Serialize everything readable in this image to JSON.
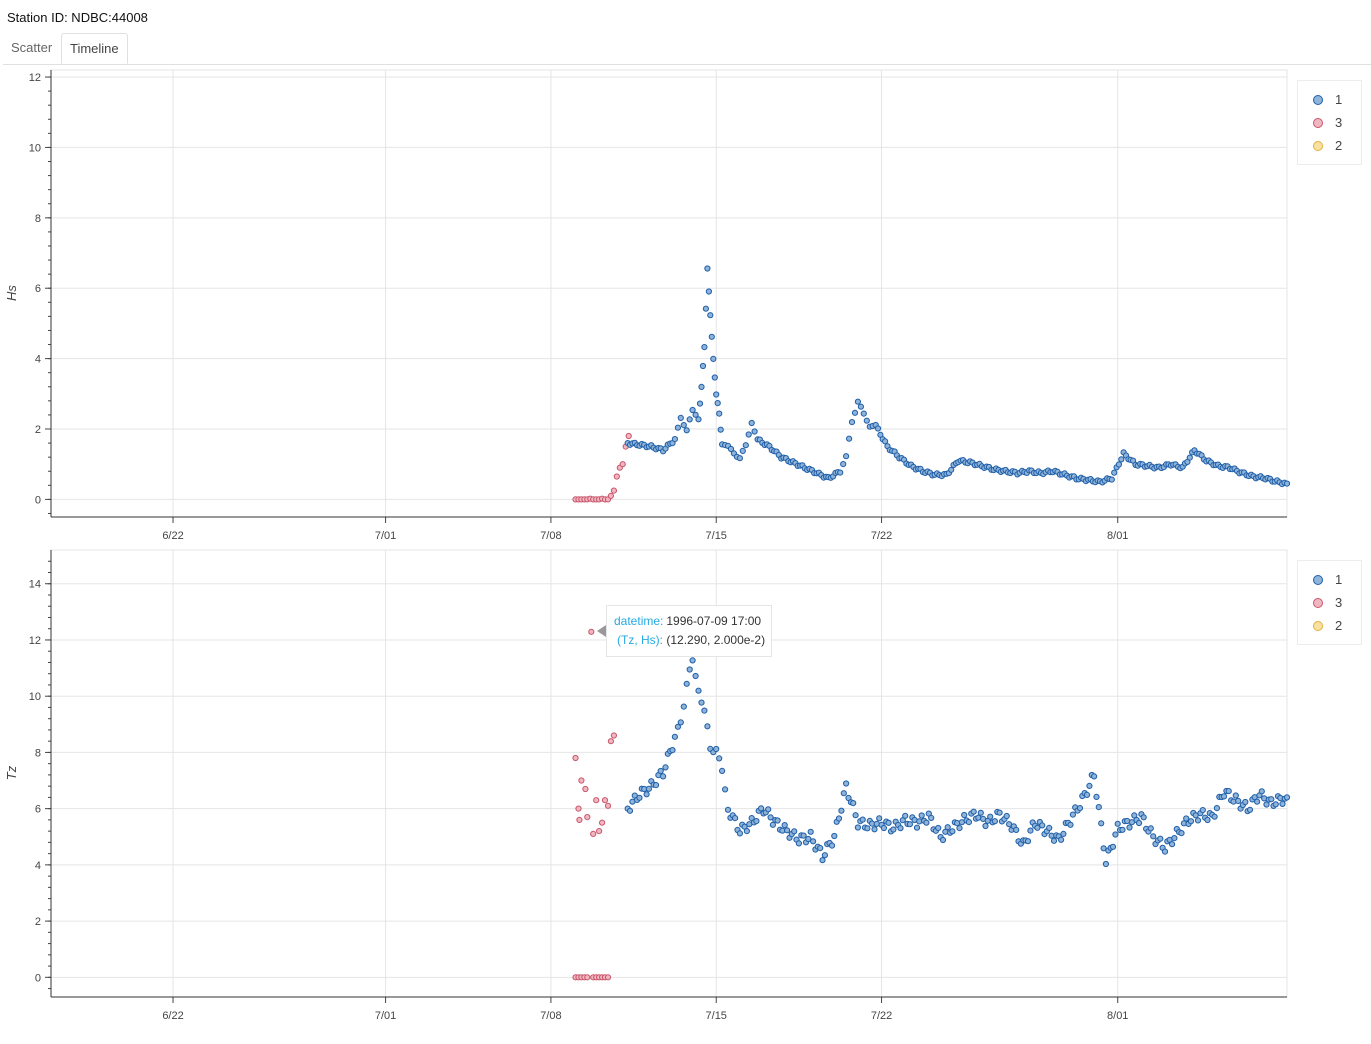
{
  "header": {
    "station": "Station ID: NDBC:44008"
  },
  "tabs": [
    {
      "label": "Scatter",
      "active": false
    },
    {
      "label": "Timeline",
      "active": true
    }
  ],
  "legend": [
    {
      "label": "1",
      "color": "#1f5fa8"
    },
    {
      "label": "3",
      "color": "#d36a7e"
    },
    {
      "label": "2",
      "color": "#f2c94c"
    }
  ],
  "tooltip": {
    "k1": "datetime:",
    "v1": "1996-07-09 17:00",
    "k2": "(Tz, Hs):",
    "v2": "(12.290, 2.000e-2)"
  },
  "chart_data": [
    {
      "type": "scatter",
      "ylabel": "Hs",
      "xlabel": "",
      "ylim": [
        -0.5,
        12.2
      ],
      "yticks": [
        0,
        2,
        4,
        6,
        8,
        10,
        12
      ],
      "xlim": [
        "1996-06-16 20:00",
        "1996-08-08 04:00"
      ],
      "xticks": [
        {
          "label": "6/22",
          "date": "1996-06-22"
        },
        {
          "label": "7/01",
          "date": "1996-07-01"
        },
        {
          "label": "7/08",
          "date": "1996-07-08"
        },
        {
          "label": "7/15",
          "date": "1996-07-15"
        },
        {
          "label": "7/22",
          "date": "1996-07-22"
        },
        {
          "label": "8/01",
          "date": "1996-08-01"
        }
      ],
      "grid": true,
      "series": [
        {
          "name": "3",
          "points": [
            [
              "1996-07-09 01:00",
              0.0
            ],
            [
              "1996-07-09 04:00",
              0.0
            ],
            [
              "1996-07-09 07:00",
              0.0
            ],
            [
              "1996-07-09 10:00",
              0.0
            ],
            [
              "1996-07-09 13:00",
              0.0
            ],
            [
              "1996-07-09 16:00",
              0.02
            ],
            [
              "1996-07-09 19:00",
              0.0
            ],
            [
              "1996-07-09 22:00",
              0.0
            ],
            [
              "1996-07-10 01:00",
              0.0
            ],
            [
              "1996-07-10 04:00",
              0.02
            ],
            [
              "1996-07-10 07:00",
              0.0
            ],
            [
              "1996-07-10 10:00",
              0.0
            ],
            [
              "1996-07-10 13:00",
              0.1
            ],
            [
              "1996-07-10 16:00",
              0.25
            ],
            [
              "1996-07-10 19:00",
              0.65
            ],
            [
              "1996-07-10 22:00",
              0.9
            ],
            [
              "1996-07-11 01:00",
              1.0
            ],
            [
              "1996-07-11 04:00",
              1.5
            ],
            [
              "1996-07-11 07:00",
              1.8
            ]
          ]
        },
        {
          "name": "1",
          "points": [
            [
              "1996-07-11 06:00",
              1.6
            ],
            [
              "1996-07-11 18:00",
              1.55
            ],
            [
              "1996-07-12 06:00",
              1.5
            ],
            [
              "1996-07-12 18:00",
              1.4
            ],
            [
              "1996-07-13 06:00",
              1.7
            ],
            [
              "1996-07-13 12:00",
              2.3
            ],
            [
              "1996-07-13 18:00",
              2.0
            ],
            [
              "1996-07-14 00:00",
              2.5
            ],
            [
              "1996-07-14 06:00",
              2.3
            ],
            [
              "1996-07-14 09:00",
              3.2
            ],
            [
              "1996-07-14 12:00",
              4.3
            ],
            [
              "1996-07-14 15:00",
              6.6
            ],
            [
              "1996-07-14 18:00",
              5.2
            ],
            [
              "1996-07-14 21:00",
              4.0
            ],
            [
              "1996-07-15 00:00",
              3.0
            ],
            [
              "1996-07-15 03:00",
              2.4
            ],
            [
              "1996-07-15 06:00",
              1.6
            ],
            [
              "1996-07-15 12:00",
              1.5
            ],
            [
              "1996-07-15 18:00",
              1.3
            ],
            [
              "1996-07-16 00:00",
              1.2
            ],
            [
              "1996-07-16 06:00",
              1.5
            ],
            [
              "1996-07-16 12:00",
              2.2
            ],
            [
              "1996-07-16 18:00",
              1.7
            ],
            [
              "1996-07-17 06:00",
              1.5
            ],
            [
              "1996-07-17 18:00",
              1.2
            ],
            [
              "1996-07-18 06:00",
              1.05
            ],
            [
              "1996-07-18 18:00",
              0.9
            ],
            [
              "1996-07-19 06:00",
              0.75
            ],
            [
              "1996-07-19 18:00",
              0.6
            ],
            [
              "1996-07-20 06:00",
              0.8
            ],
            [
              "1996-07-20 12:00",
              1.2
            ],
            [
              "1996-07-20 18:00",
              2.2
            ],
            [
              "1996-07-21 00:00",
              2.8
            ],
            [
              "1996-07-21 06:00",
              2.4
            ],
            [
              "1996-07-21 12:00",
              2.1
            ],
            [
              "1996-07-21 18:00",
              2.1
            ],
            [
              "1996-07-22 06:00",
              1.5
            ],
            [
              "1996-07-22 18:00",
              1.2
            ],
            [
              "1996-07-23 06:00",
              0.95
            ],
            [
              "1996-07-23 18:00",
              0.8
            ],
            [
              "1996-07-24 06:00",
              0.7
            ],
            [
              "1996-07-24 18:00",
              0.7
            ],
            [
              "1996-07-25 06:00",
              1.1
            ],
            [
              "1996-07-25 18:00",
              1.05
            ],
            [
              "1996-07-26 06:00",
              0.95
            ],
            [
              "1996-07-26 18:00",
              0.85
            ],
            [
              "1996-07-27 06:00",
              0.8
            ],
            [
              "1996-07-27 18:00",
              0.75
            ],
            [
              "1996-07-28 06:00",
              0.8
            ],
            [
              "1996-07-28 18:00",
              0.75
            ],
            [
              "1996-07-29 06:00",
              0.8
            ],
            [
              "1996-07-29 18:00",
              0.7
            ],
            [
              "1996-07-30 06:00",
              0.6
            ],
            [
              "1996-07-30 18:00",
              0.55
            ],
            [
              "1996-07-31 06:00",
              0.5
            ],
            [
              "1996-07-31 18:00",
              0.6
            ],
            [
              "1996-08-01 06:00",
              1.3
            ],
            [
              "1996-08-01 18:00",
              1.0
            ],
            [
              "1996-08-02 06:00",
              0.95
            ],
            [
              "1996-08-02 18:00",
              0.9
            ],
            [
              "1996-08-03 06:00",
              1.0
            ],
            [
              "1996-08-03 18:00",
              0.9
            ],
            [
              "1996-08-04 06:00",
              1.4
            ],
            [
              "1996-08-04 18:00",
              1.1
            ],
            [
              "1996-08-05 06:00",
              0.95
            ],
            [
              "1996-08-05 18:00",
              0.9
            ],
            [
              "1996-08-06 06:00",
              0.75
            ],
            [
              "1996-08-06 18:00",
              0.65
            ],
            [
              "1996-08-07 06:00",
              0.6
            ],
            [
              "1996-08-07 18:00",
              0.5
            ],
            [
              "1996-08-08 04:00",
              0.45
            ]
          ]
        }
      ]
    },
    {
      "type": "scatter",
      "ylabel": "Tz",
      "xlabel": "",
      "ylim": [
        -0.7,
        15.2
      ],
      "yticks": [
        0,
        2,
        4,
        6,
        8,
        10,
        12,
        14
      ],
      "xlim": [
        "1996-06-16 20:00",
        "1996-08-08 04:00"
      ],
      "xticks": [
        {
          "label": "6/22",
          "date": "1996-06-22"
        },
        {
          "label": "7/01",
          "date": "1996-07-01"
        },
        {
          "label": "7/08",
          "date": "1996-07-08"
        },
        {
          "label": "7/15",
          "date": "1996-07-15"
        },
        {
          "label": "7/22",
          "date": "1996-07-22"
        },
        {
          "label": "8/01",
          "date": "1996-08-01"
        }
      ],
      "grid": true,
      "series": [
        {
          "name": "3",
          "points": [
            [
              "1996-07-09 01:00",
              0.0
            ],
            [
              "1996-07-09 04:00",
              0.0
            ],
            [
              "1996-07-09 07:00",
              0.0
            ],
            [
              "1996-07-09 10:00",
              0.0
            ],
            [
              "1996-07-09 13:00",
              0.0
            ],
            [
              "1996-07-09 19:00",
              0.0
            ],
            [
              "1996-07-09 22:00",
              0.0
            ],
            [
              "1996-07-10 01:00",
              0.0
            ],
            [
              "1996-07-10 04:00",
              0.0
            ],
            [
              "1996-07-10 07:00",
              0.0
            ],
            [
              "1996-07-10 10:00",
              0.0
            ],
            [
              "1996-07-09 01:00",
              7.8
            ],
            [
              "1996-07-09 04:00",
              6.0
            ],
            [
              "1996-07-09 05:00",
              5.6
            ],
            [
              "1996-07-09 07:00",
              7.0
            ],
            [
              "1996-07-09 11:00",
              6.7
            ],
            [
              "1996-07-09 13:00",
              5.7
            ],
            [
              "1996-07-09 17:00",
              12.29
            ],
            [
              "1996-07-09 19:00",
              5.1
            ],
            [
              "1996-07-09 22:00",
              6.3
            ],
            [
              "1996-07-10 01:00",
              5.2
            ],
            [
              "1996-07-10 04:00",
              5.5
            ],
            [
              "1996-07-10 07:00",
              6.3
            ],
            [
              "1996-07-10 10:00",
              6.1
            ],
            [
              "1996-07-10 13:00",
              8.4
            ],
            [
              "1996-07-10 16:00",
              8.6
            ]
          ]
        },
        {
          "name": "1",
          "points": [
            [
              "1996-07-11 06:00",
              6.0
            ],
            [
              "1996-07-11 18:00",
              6.5
            ],
            [
              "1996-07-12 06:00",
              6.8
            ],
            [
              "1996-07-12 18:00",
              7.3
            ],
            [
              "1996-07-13 06:00",
              8.5
            ],
            [
              "1996-07-13 12:00",
              9.0
            ],
            [
              "1996-07-13 18:00",
              10.6
            ],
            [
              "1996-07-14 00:00",
              11.1
            ],
            [
              "1996-07-14 06:00",
              10.3
            ],
            [
              "1996-07-14 12:00",
              9.5
            ],
            [
              "1996-07-14 18:00",
              8.0
            ],
            [
              "1996-07-15 00:00",
              8.3
            ],
            [
              "1996-07-15 06:00",
              7.2
            ],
            [
              "1996-07-15 12:00",
              6.0
            ],
            [
              "1996-07-16 00:00",
              5.2
            ],
            [
              "1996-07-16 12:00",
              5.5
            ],
            [
              "1996-07-17 00:00",
              6.0
            ],
            [
              "1996-07-17 12:00",
              5.5
            ],
            [
              "1996-07-18 00:00",
              5.2
            ],
            [
              "1996-07-18 12:00",
              4.9
            ],
            [
              "1996-07-19 00:00",
              5.0
            ],
            [
              "1996-07-19 12:00",
              4.3
            ],
            [
              "1996-07-20 00:00",
              5.0
            ],
            [
              "1996-07-20 12:00",
              6.8
            ],
            [
              "1996-07-21 00:00",
              5.5
            ],
            [
              "1996-07-21 12:00",
              5.4
            ],
            [
              "1996-07-22 00:00",
              5.5
            ],
            [
              "1996-07-22 12:00",
              5.3
            ],
            [
              "1996-07-23 00:00",
              5.6
            ],
            [
              "1996-07-23 12:00",
              5.5
            ],
            [
              "1996-07-24 00:00",
              5.7
            ],
            [
              "1996-07-24 12:00",
              5.0
            ],
            [
              "1996-07-25 00:00",
              5.3
            ],
            [
              "1996-07-25 12:00",
              5.6
            ],
            [
              "1996-07-26 00:00",
              5.8
            ],
            [
              "1996-07-26 12:00",
              5.5
            ],
            [
              "1996-07-27 00:00",
              5.8
            ],
            [
              "1996-07-27 12:00",
              5.4
            ],
            [
              "1996-07-28 00:00",
              4.7
            ],
            [
              "1996-07-28 12:00",
              5.5
            ],
            [
              "1996-07-29 00:00",
              5.2
            ],
            [
              "1996-07-29 12:00",
              4.9
            ],
            [
              "1996-07-30 00:00",
              5.6
            ],
            [
              "1996-07-30 12:00",
              6.3
            ],
            [
              "1996-07-31 00:00",
              7.2
            ],
            [
              "1996-07-31 12:00",
              4.1
            ],
            [
              "1996-08-01 00:00",
              5.3
            ],
            [
              "1996-08-01 12:00",
              5.5
            ],
            [
              "1996-08-02 00:00",
              5.7
            ],
            [
              "1996-08-02 12:00",
              5.0
            ],
            [
              "1996-08-03 00:00",
              4.6
            ],
            [
              "1996-08-03 12:00",
              5.1
            ],
            [
              "1996-08-04 00:00",
              5.6
            ],
            [
              "1996-08-04 12:00",
              5.8
            ],
            [
              "1996-08-05 00:00",
              5.7
            ],
            [
              "1996-08-05 12:00",
              6.6
            ],
            [
              "1996-08-06 00:00",
              6.3
            ],
            [
              "1996-08-06 12:00",
              6.0
            ],
            [
              "1996-08-07 00:00",
              6.5
            ],
            [
              "1996-08-07 12:00",
              6.2
            ],
            [
              "1996-08-08 04:00",
              6.4
            ]
          ]
        }
      ]
    }
  ]
}
